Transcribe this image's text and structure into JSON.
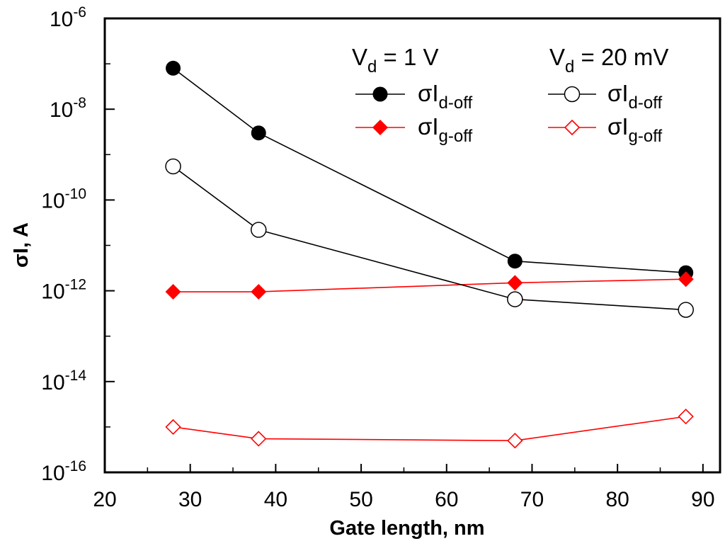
{
  "chart_data": {
    "type": "line",
    "yscale": "log",
    "xlabel": "Gate length, nm",
    "ylabel": "σI, A",
    "xlim": [
      20,
      92
    ],
    "ylim_exp": [
      -16,
      -6
    ],
    "x_ticks": [
      20,
      30,
      40,
      50,
      60,
      70,
      80,
      90
    ],
    "x_tick_labels": [
      "20",
      "30",
      "40",
      "50",
      "60",
      "70",
      "80",
      "90"
    ],
    "y_tick_exps": [
      -16,
      -14,
      -12,
      -10,
      -8,
      -6
    ],
    "y_tick_base": "10",
    "y_tick_sups": [
      "-16",
      "-14",
      "-12",
      "-10",
      "-8",
      "-6"
    ],
    "legend": {
      "group1": {
        "main": "V",
        "sub": "d",
        "rest": " = 1 V"
      },
      "group2": {
        "main": "V",
        "sub": "d",
        "rest": " = 20 mV"
      },
      "entry_main": "σI",
      "sub_d": "d-off",
      "sub_g": "g-off"
    },
    "series": [
      {
        "name": "σId-off, Vd = 1 V",
        "color": "#000000",
        "marker": "circle",
        "filled": true,
        "x": [
          28,
          38,
          68,
          88
        ],
        "y": [
          8e-08,
          3e-09,
          4.5e-12,
          2.5e-12
        ]
      },
      {
        "name": "σIg-off, Vd = 1 V",
        "color": "#ff0000",
        "marker": "diamond",
        "filled": true,
        "x": [
          28,
          38,
          68,
          88
        ],
        "y": [
          9.5e-13,
          9.5e-13,
          1.5e-12,
          1.8e-12
        ]
      },
      {
        "name": "σId-off, Vd = 20 mV",
        "color": "#000000",
        "marker": "circle",
        "filled": false,
        "x": [
          28,
          38,
          68,
          88
        ],
        "y": [
          5.5e-10,
          2.2e-11,
          6.5e-13,
          3.8e-13
        ]
      },
      {
        "name": "σIg-off, Vd = 20 mV",
        "color": "#ff0000",
        "marker": "diamond",
        "filled": false,
        "x": [
          28,
          38,
          68,
          88
        ],
        "y": [
          1e-15,
          5.5e-16,
          5e-16,
          1.7e-15
        ]
      }
    ]
  }
}
